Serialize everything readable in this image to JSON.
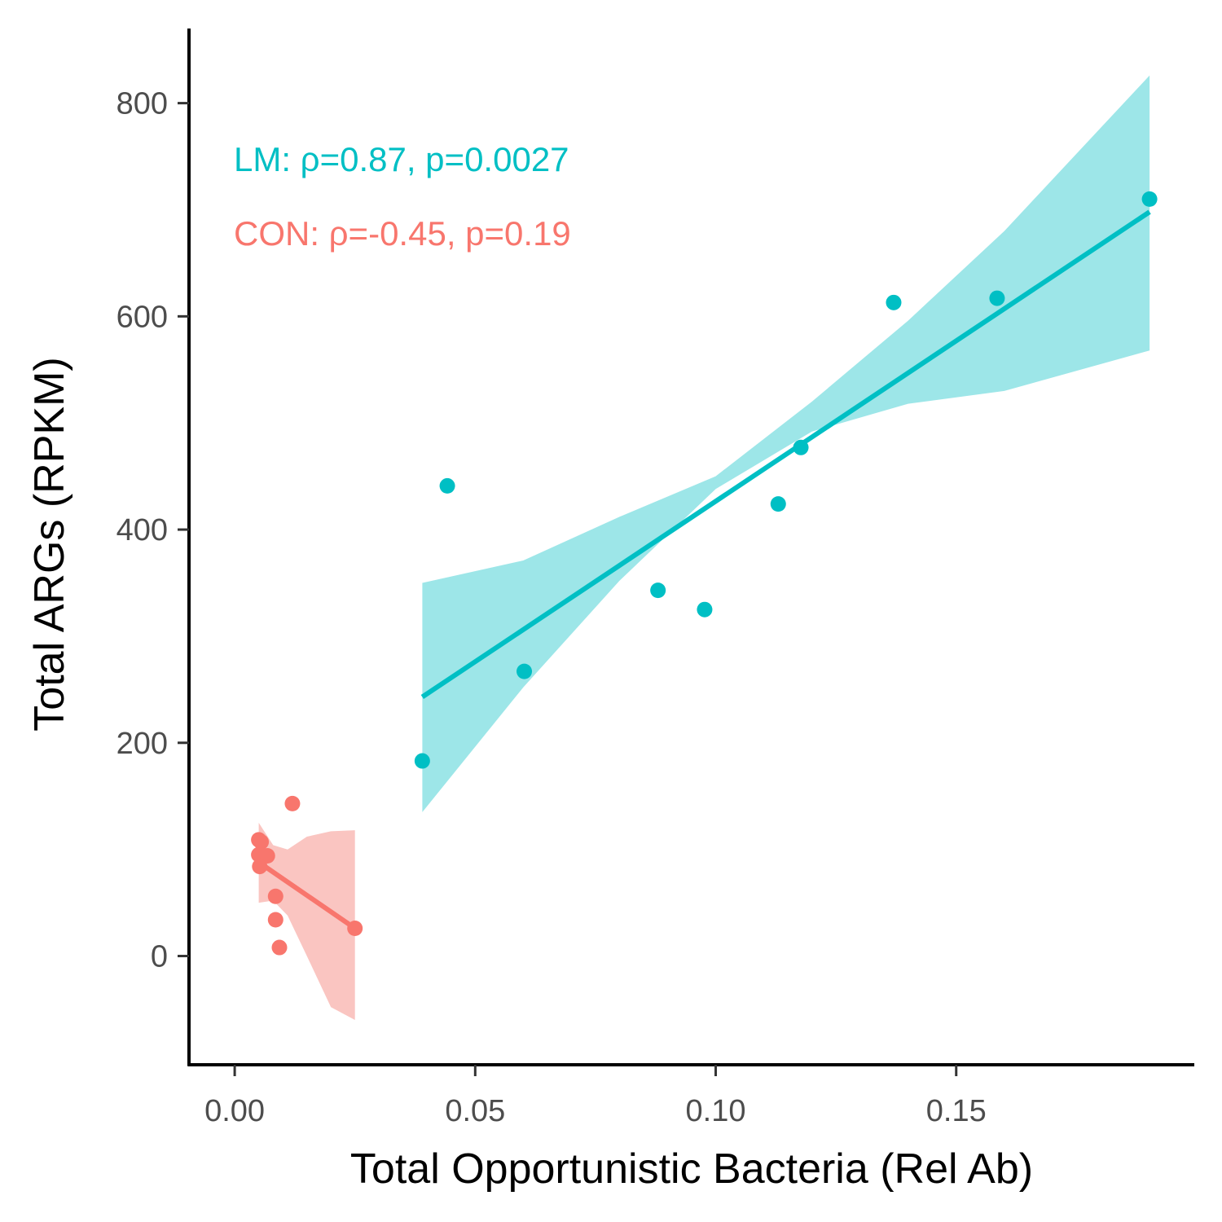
{
  "chart_data": {
    "type": "scatter",
    "title": "",
    "xlabel": "Total Opportunistic Bacteria (Rel Ab)",
    "ylabel": "Total ARGs (RPKM)",
    "xlim": [
      -0.0095,
      0.1995
    ],
    "ylim": [
      -102,
      870
    ],
    "x_ticks": [
      0.0,
      0.05,
      0.1,
      0.15
    ],
    "x_tick_labels": [
      "0.00",
      "0.05",
      "0.10",
      "0.15"
    ],
    "y_ticks": [
      0,
      200,
      400,
      600,
      800
    ],
    "y_tick_labels": [
      "0",
      "200",
      "400",
      "600",
      "800"
    ],
    "grid": false,
    "legend": "none",
    "annotations": [
      {
        "text": "LM: ρ=0.87, p=0.0027",
        "color": "#00BFC4"
      },
      {
        "text": "CON: ρ=-0.45, p=0.19",
        "color": "#F8766D"
      }
    ],
    "series": [
      {
        "group": "LM",
        "color": "#00BFC4",
        "band_color": "#9DE6E8",
        "points": [
          {
            "x": 0.039,
            "y": 183
          },
          {
            "x": 0.0442,
            "y": 441
          },
          {
            "x": 0.0602,
            "y": 267
          },
          {
            "x": 0.088,
            "y": 343
          },
          {
            "x": 0.0977,
            "y": 325
          },
          {
            "x": 0.113,
            "y": 424
          },
          {
            "x": 0.1177,
            "y": 477
          },
          {
            "x": 0.137,
            "y": 613
          },
          {
            "x": 0.1585,
            "y": 617
          },
          {
            "x": 0.1902,
            "y": 710
          }
        ],
        "fit": {
          "x": [
            0.039,
            0.1902
          ],
          "y": [
            243,
            698
          ]
        },
        "ci_band": {
          "x": [
            0.039,
            0.06,
            0.08,
            0.1,
            0.12,
            0.14,
            0.16,
            0.1902
          ],
          "lower": [
            135,
            252,
            352,
            438,
            492,
            518,
            530,
            568
          ],
          "upper": [
            350,
            371,
            412,
            450,
            520,
            596,
            680,
            826
          ]
        }
      },
      {
        "group": "CON",
        "color": "#F8766D",
        "band_color": "#FAC5C1",
        "points": [
          {
            "x": 0.005,
            "y": 109
          },
          {
            "x": 0.0055,
            "y": 107
          },
          {
            "x": 0.005,
            "y": 95
          },
          {
            "x": 0.0068,
            "y": 94
          },
          {
            "x": 0.0052,
            "y": 84
          },
          {
            "x": 0.012,
            "y": 143
          },
          {
            "x": 0.0085,
            "y": 56
          },
          {
            "x": 0.0085,
            "y": 34
          },
          {
            "x": 0.0093,
            "y": 8
          },
          {
            "x": 0.025,
            "y": 26
          }
        ],
        "fit": {
          "x": [
            0.005,
            0.025
          ],
          "y": [
            88,
            26
          ]
        },
        "ci_band": {
          "x": [
            0.005,
            0.008,
            0.011,
            0.015,
            0.02,
            0.025
          ],
          "lower": [
            50,
            52,
            38,
            0,
            -48,
            -60
          ],
          "upper": [
            125,
            104,
            100,
            112,
            117,
            118
          ]
        }
      }
    ]
  }
}
